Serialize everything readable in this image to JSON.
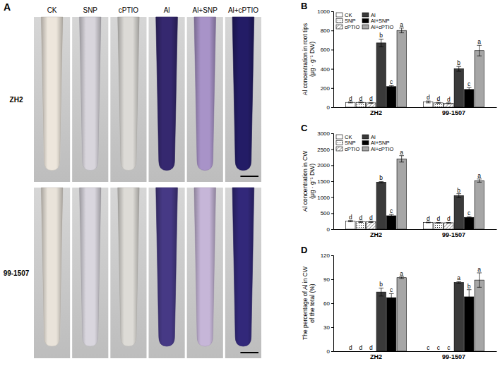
{
  "image_panel": {
    "label": "A",
    "columns": [
      "CK",
      "SNP",
      "cPTIO",
      "Al",
      "Al+SNP",
      "Al+cPTIO"
    ],
    "rows": [
      "ZH2",
      "99-1507"
    ],
    "stain_colors": [
      [
        "#ede6dc",
        "#d8d5dc",
        "#dcdad6",
        "#35286f",
        "#a893c8",
        "#231c66"
      ],
      [
        "#e9e3da",
        "#d9d6de",
        "#dddbd6",
        "#463985",
        "#c6b6d8",
        "#32287a"
      ]
    ]
  },
  "chart_data": [
    {
      "type": "bar",
      "title": "B",
      "y_label": [
        "Al concentration in root tips",
        "(μg · g⁻¹ DW)"
      ],
      "categories": [
        "ZH2",
        "99-1507"
      ],
      "ylim": [
        0,
        1000
      ],
      "yticks": [
        0,
        200,
        400,
        600,
        800,
        1000
      ],
      "legend": "upper left",
      "series": [
        {
          "name": "CK",
          "color": "#ffffff",
          "values": [
            50,
            55
          ],
          "errors": [
            5,
            10
          ],
          "letters": [
            "d",
            "d"
          ]
        },
        {
          "name": "SNP",
          "color": "#ffffff",
          "values": [
            50,
            45
          ],
          "errors": [
            5,
            5
          ],
          "letters": [
            "d",
            "d"
          ]
        },
        {
          "name": "cPTIO",
          "color": "#ffffff",
          "values": [
            45,
            40
          ],
          "errors": [
            5,
            5
          ],
          "letters": [
            "d",
            "d"
          ]
        },
        {
          "name": "Al",
          "color": "#3a3a3a",
          "values": [
            670,
            400
          ],
          "errors": [
            40,
            25
          ],
          "letters": [
            "b",
            "b"
          ]
        },
        {
          "name": "Al+SNP",
          "color": "#000000",
          "values": [
            215,
            185
          ],
          "errors": [
            10,
            20
          ],
          "letters": [
            "c",
            "c"
          ]
        },
        {
          "name": "Al+cPTIO",
          "color": "#a6a6a6",
          "values": [
            800,
            590
          ],
          "errors": [
            25,
            55
          ],
          "letters": [
            "a",
            "a"
          ]
        }
      ]
    },
    {
      "type": "bar",
      "title": "C",
      "y_label": [
        "Al concentration in CW",
        "(μg · g⁻¹ DW)"
      ],
      "categories": [
        "ZH2",
        "99-1507"
      ],
      "ylim": [
        0,
        3000
      ],
      "yticks": [
        0,
        500,
        1000,
        1500,
        2000,
        2500,
        3000
      ],
      "legend": "upper left",
      "series": [
        {
          "name": "CK",
          "color": "#ffffff",
          "values": [
            250,
            210
          ],
          "errors": [
            20,
            10
          ],
          "letters": [
            "d",
            "d"
          ]
        },
        {
          "name": "SNP",
          "color": "#ffffff",
          "values": [
            230,
            200
          ],
          "errors": [
            20,
            10
          ],
          "letters": [
            "d",
            "d"
          ]
        },
        {
          "name": "cPTIO",
          "color": "#ffffff",
          "values": [
            230,
            200
          ],
          "errors": [
            20,
            10
          ],
          "letters": [
            "d",
            "d"
          ]
        },
        {
          "name": "Al",
          "color": "#3a3a3a",
          "values": [
            1470,
            1050
          ],
          "errors": [
            20,
            60
          ],
          "letters": [
            "b",
            "b"
          ]
        },
        {
          "name": "Al+SNP",
          "color": "#000000",
          "values": [
            420,
            370
          ],
          "errors": [
            40,
            20
          ],
          "letters": [
            "c",
            "c"
          ]
        },
        {
          "name": "Al+cPTIO",
          "color": "#a6a6a6",
          "values": [
            2200,
            1520
          ],
          "errors": [
            100,
            50
          ],
          "letters": [
            "a",
            "a"
          ]
        }
      ]
    },
    {
      "type": "bar",
      "title": "D",
      "y_label": [
        "The percentage of Al in CW",
        "of the total (%)"
      ],
      "categories": [
        "ZH2",
        "99-1507"
      ],
      "ylim": [
        0,
        120
      ],
      "yticks": [
        0,
        30,
        60,
        90,
        120
      ],
      "series": [
        {
          "name": "CK",
          "color": "#ffffff",
          "values": [
            0,
            0
          ],
          "errors": [
            0,
            0
          ],
          "letters": [
            "d",
            "c"
          ]
        },
        {
          "name": "SNP",
          "color": "#ffffff",
          "values": [
            0,
            0
          ],
          "errors": [
            0,
            0
          ],
          "letters": [
            "d",
            "c"
          ]
        },
        {
          "name": "cPTIO",
          "color": "#ffffff",
          "values": [
            0,
            0
          ],
          "errors": [
            0,
            0
          ],
          "letters": [
            "d",
            "c"
          ]
        },
        {
          "name": "Al",
          "color": "#3a3a3a",
          "values": [
            74,
            86
          ],
          "errors": [
            5,
            1
          ],
          "letters": [
            "b",
            "a"
          ]
        },
        {
          "name": "Al+SNP",
          "color": "#000000",
          "values": [
            67,
            68
          ],
          "errors": [
            5,
            9
          ],
          "letters": [
            "c",
            "b"
          ]
        },
        {
          "name": "Al+cPTIO",
          "color": "#a6a6a6",
          "values": [
            92,
            89
          ],
          "errors": [
            1,
            9
          ],
          "letters": [
            "a",
            "a"
          ]
        }
      ]
    }
  ]
}
